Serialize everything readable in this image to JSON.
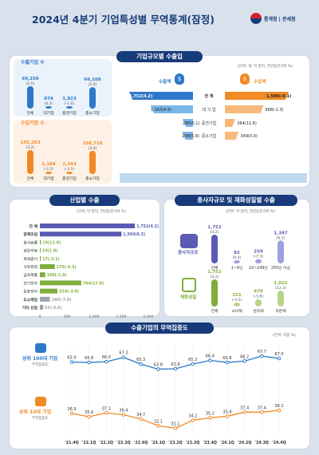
{
  "header": {
    "title": "2024년 4분기 기업특성별 무역통계(잠정)",
    "logo_text": "통계청 | 관세청"
  },
  "size_section": {
    "title": "기업규모별 수출입",
    "unit_note": "(단위: 개, 억 달러, 전년동분기비 %)",
    "export_count": {
      "label": "수출기업 수",
      "categories": [
        "전체",
        "대기업",
        "중견기업",
        "중소기업"
      ],
      "values": [
        "69,259",
        "874",
        "1,923",
        "66,168"
      ],
      "changes": [
        "(2.0)",
        "(0.2)",
        "(-1.0)",
        "(2.0)"
      ]
    },
    "import_count": {
      "label": "수입기업 수",
      "categories": [
        "전체",
        "대기업",
        "중견기업",
        "중소기업"
      ],
      "values": [
        "155,263",
        "1,168",
        "2,343",
        "150,710"
      ],
      "changes": [
        "(3.2)",
        "(-2.2)",
        "(-3.1)",
        "(3.4)"
      ]
    },
    "export_amount_label": "수출액",
    "import_amount_label": "수입액",
    "rows": [
      "전 체",
      "대 기 업",
      "중견기업",
      "중소기업"
    ],
    "export_values": [
      "1,752",
      "1,163",
      "286",
      "298"
    ],
    "export_changes": [
      "(4.2)",
      "(4.9)",
      "(0.1)",
      "(5.9)"
    ],
    "import_values": [
      "1,599",
      "968",
      "264",
      "349"
    ],
    "import_changes": [
      "(-0.1)",
      "(-1.3)",
      "(11.6)",
      "(0.0)"
    ]
  },
  "industry_section": {
    "title": "산업별 수출",
    "unit_note": "(단위: 억 달러, 전년동분기비 %)",
    "labels": [
      "전 체",
      "광제조업",
      "음식료품",
      "섬유의복",
      "목재종이",
      "석유화학",
      "금속제품",
      "전기전자",
      "운송장비",
      "도소매업",
      "기타 산업"
    ],
    "value_labels": [
      "1,752(4.2)",
      "1,504(6.3)",
      "19(11.9)",
      "14(1.8)",
      "17(-3.1)",
      "275(-4.3)",
      "100(-1.9)",
      "764(17.0)",
      "324(-3.0)",
      "184(-7.8)",
      "61(-5.6)"
    ],
    "axis_ticks": [
      "0",
      "500",
      "1,000",
      "1,500",
      "2,000"
    ]
  },
  "employee_section": {
    "title": "종사자규모 및 재화성질별 수출",
    "unit_note": "(단위: 억 달러, 전년동분기비 %)",
    "employee_label": "종사자규모",
    "goods_label": "재화성질",
    "employee_categories": [
      "전체",
      "1~9인",
      "10~249인",
      "250인 이상"
    ],
    "employee_values": [
      "1,752",
      "92",
      "259",
      "1,397"
    ],
    "employee_changes": [
      "(4.2)",
      "(9.4)",
      "(-7.3)",
      "(6.2)"
    ],
    "goods_categories": [
      "전체",
      "소비재",
      "원자재",
      "자본재"
    ],
    "goods_values": [
      "1,752",
      "251",
      "479",
      "1,022"
    ],
    "goods_changes": [
      "(4.2)",
      "(-4.5)",
      "(-5.8)",
      "(12.3)"
    ]
  },
  "concentration_section": {
    "title": "수출기업의 무역집중도",
    "unit_note": "(단위: 비중 %)",
    "top100_label": "상위 100대 기업",
    "top10_label": "상위 10대 기업",
    "sub_label": "무역집중도"
  },
  "chart_data": [
    {
      "type": "bar",
      "title": "수출기업 수",
      "categories": [
        "전체",
        "대기업",
        "중견기업",
        "중소기업"
      ],
      "values": [
        69259,
        874,
        1923,
        66168
      ],
      "changes": [
        2.0,
        0.2,
        -1.0,
        2.0
      ]
    },
    {
      "type": "bar",
      "title": "수입기업 수",
      "categories": [
        "전체",
        "대기업",
        "중견기업",
        "중소기업"
      ],
      "values": [
        155263,
        1168,
        2343,
        150710
      ],
      "changes": [
        3.2,
        -2.2,
        -3.1,
        3.4
      ]
    },
    {
      "type": "bar",
      "title": "수출액",
      "categories": [
        "전 체",
        "대 기 업",
        "중견기업",
        "중소기업"
      ],
      "values": [
        1752,
        1163,
        286,
        298
      ],
      "changes": [
        4.2,
        4.9,
        0.1,
        5.9
      ]
    },
    {
      "type": "bar",
      "title": "수입액",
      "categories": [
        "전 체",
        "대 기 업",
        "중견기업",
        "중소기업"
      ],
      "values": [
        1599,
        968,
        264,
        349
      ],
      "changes": [
        -0.1,
        -1.3,
        11.6,
        0.0
      ]
    },
    {
      "type": "bar",
      "title": "산업별 수출",
      "categories": [
        "전 체",
        "광제조업",
        "음식료품",
        "섬유의복",
        "목재종이",
        "석유화학",
        "금속제품",
        "전기전자",
        "운송장비",
        "도소매업",
        "기타 산업"
      ],
      "values": [
        1752,
        1504,
        19,
        14,
        17,
        275,
        100,
        764,
        324,
        184,
        61
      ],
      "changes": [
        4.2,
        6.3,
        11.9,
        1.8,
        -3.1,
        -4.3,
        -1.9,
        17.0,
        -3.0,
        -7.8,
        -5.6
      ],
      "xlim": [
        0,
        2000
      ]
    },
    {
      "type": "bar",
      "title": "종사자규모",
      "categories": [
        "전체",
        "1~9인",
        "10~249인",
        "250인 이상"
      ],
      "values": [
        1752,
        92,
        259,
        1397
      ],
      "changes": [
        4.2,
        9.4,
        -7.3,
        6.2
      ]
    },
    {
      "type": "bar",
      "title": "재화성질",
      "categories": [
        "전체",
        "소비재",
        "원자재",
        "자본재"
      ],
      "values": [
        1752,
        251,
        479,
        1022
      ],
      "changes": [
        4.2,
        -4.5,
        -5.8,
        12.3
      ]
    },
    {
      "type": "line",
      "title": "수출기업의 무역집중도",
      "x": [
        "'21.4Q",
        "'22.1Q",
        "'22.2Q",
        "'22.3Q",
        "'22.4Q",
        "'23.1Q",
        "'23.2Q",
        "'23.3Q",
        "'23.4Q",
        "'24.1Q",
        "'24.2Q",
        "'24.3Q",
        "'24.4Q"
      ],
      "series": [
        {
          "name": "상위 100대 기업",
          "values": [
            65.9,
            65.8,
            66.0,
            67.3,
            65.3,
            63.8,
            63.9,
            65.3,
            66.4,
            65.8,
            66.2,
            67.7,
            67.0
          ]
        },
        {
          "name": "상위 10대 기업",
          "values": [
            36.9,
            35.6,
            37.1,
            36.4,
            34.7,
            32.1,
            31.1,
            34.2,
            35.2,
            35.8,
            37.4,
            37.4,
            38.1
          ]
        }
      ]
    }
  ],
  "colors": {
    "navy": "#173b7a",
    "blue": "#2e78c9",
    "lightblue": "#7cb6e8",
    "orange": "#f08a24",
    "green": "#7fae3c",
    "purple": "#5b5bb5",
    "gray": "#9aa3ad",
    "bg": "#d9e2ec"
  }
}
